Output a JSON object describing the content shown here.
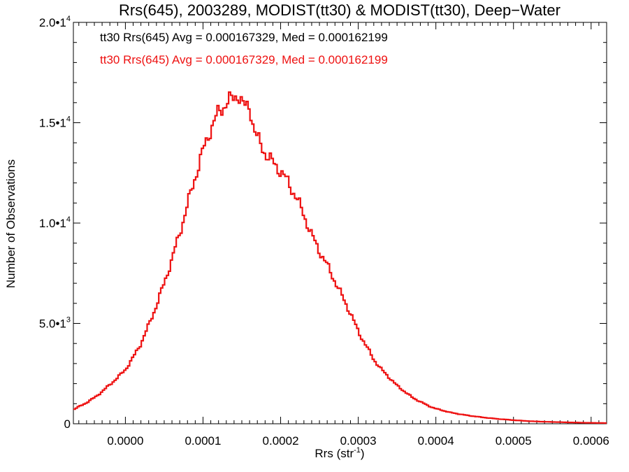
{
  "chart_data": {
    "type": "line",
    "title": "Rrs(645), 2003289, MODIST(tt30) & MODIST(tt30), Deep−Water",
    "xlabel": "Rrs (str",
    "xlabel_exp": "-1",
    "xlabel_close": ")",
    "ylabel": "Number of Observations",
    "xlim": [
      -6.7e-05,
      0.00062
    ],
    "ylim": [
      0,
      20000
    ],
    "grid": false,
    "x_ticks": [
      {
        "value": 0.0,
        "label": "0.0000"
      },
      {
        "value": 0.0001,
        "label": "0.0001"
      },
      {
        "value": 0.0002,
        "label": "0.0002"
      },
      {
        "value": 0.0003,
        "label": "0.0003"
      },
      {
        "value": 0.0004,
        "label": "0.0004"
      },
      {
        "value": 0.0005,
        "label": "0.0005"
      },
      {
        "value": 0.0006,
        "label": "0.0006"
      }
    ],
    "y_ticks": [
      {
        "value": 0,
        "mantissa": "0",
        "exp": ""
      },
      {
        "value": 5000,
        "mantissa": "5.0•1",
        "exp": "3"
      },
      {
        "value": 10000,
        "mantissa": "1.0•1",
        "exp": "4"
      },
      {
        "value": 15000,
        "mantissa": "1.5•1",
        "exp": "4"
      },
      {
        "value": 20000,
        "mantissa": "2.0•1",
        "exp": "4"
      }
    ],
    "annotations": [
      {
        "text": "tt30 Rrs(645) Avg = 0.000167329, Med = 0.000162199",
        "color": "#000000"
      },
      {
        "text": "tt30 Rrs(645) Avg = 0.000167329, Med = 0.000162199",
        "color": "#ee1111"
      }
    ],
    "series": [
      {
        "color": "#ee1111",
        "x": [
          -6.7e-05,
          -6e-05,
          -5e-05,
          -4e-05,
          -3e-05,
          -2e-05,
          -1e-05,
          0.0,
          1e-05,
          2e-05,
          3e-05,
          4e-05,
          5e-05,
          6e-05,
          7e-05,
          8e-05,
          9e-05,
          0.0001,
          0.00011,
          0.00012,
          0.00013,
          0.00014,
          0.000145,
          0.00015,
          0.000155,
          0.00016,
          0.000165,
          0.00017,
          0.00018,
          0.00019,
          0.0002,
          0.00021,
          0.00022,
          0.00023,
          0.00024,
          0.00025,
          0.00026,
          0.00027,
          0.00028,
          0.00029,
          0.0003,
          0.00031,
          0.00032,
          0.00033,
          0.00034,
          0.00035,
          0.00036,
          0.00037,
          0.00038,
          0.00039,
          0.0004,
          0.00042,
          0.00044,
          0.00046,
          0.00048,
          0.0005,
          0.00052,
          0.00054,
          0.00056,
          0.00058,
          0.0006,
          0.00062
        ],
        "y": [
          700,
          850,
          1050,
          1300,
          1600,
          1950,
          2300,
          2700,
          3300,
          4000,
          4900,
          5900,
          7000,
          8200,
          9500,
          10900,
          12300,
          13600,
          14700,
          15500,
          16000,
          16200,
          16500,
          16000,
          15700,
          15900,
          14800,
          14200,
          13500,
          13000,
          12600,
          12000,
          11300,
          10400,
          9400,
          8600,
          7900,
          7100,
          6300,
          5500,
          4600,
          3900,
          3200,
          2700,
          2300,
          1900,
          1600,
          1300,
          1100,
          900,
          750,
          550,
          420,
          320,
          240,
          180,
          130,
          100,
          80,
          60,
          45,
          35
        ]
      }
    ]
  }
}
